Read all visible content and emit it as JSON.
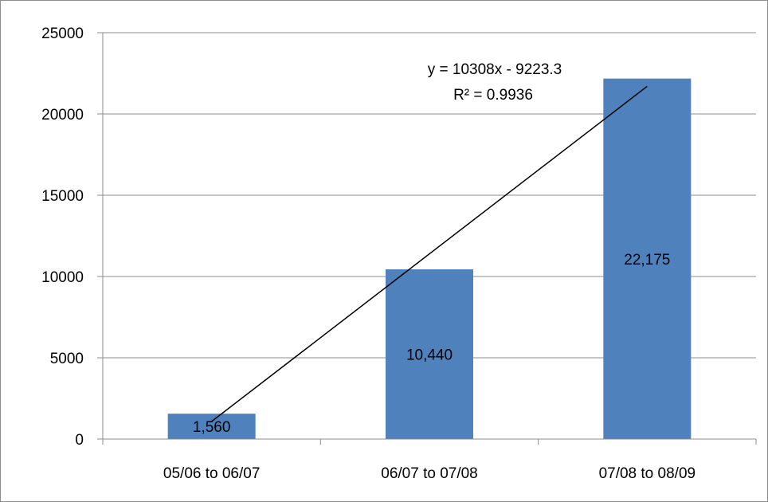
{
  "chart_data": {
    "type": "bar",
    "title": "",
    "xlabel": "",
    "ylabel": "",
    "categories": [
      "05/06 to 06/07",
      "06/07 to 07/08",
      "07/08 to 08/09"
    ],
    "values": [
      1560,
      10440,
      22175
    ],
    "data_labels": [
      "1,560",
      "10,440",
      "22,175"
    ],
    "ylim": [
      0,
      25000
    ],
    "yticks": [
      0,
      5000,
      10000,
      15000,
      20000,
      25000
    ],
    "ytick_labels": [
      "0",
      "5000",
      "10000",
      "15000",
      "20000",
      "25000"
    ],
    "grid": true,
    "legend": "none",
    "bar_color": "#4f81bd",
    "trendline": {
      "type": "linear",
      "slope": 10308,
      "intercept": -9223.3,
      "equation": "y = 10308x - 9223.3",
      "r_squared": "R² = 0.9936",
      "color": "#000000"
    }
  }
}
